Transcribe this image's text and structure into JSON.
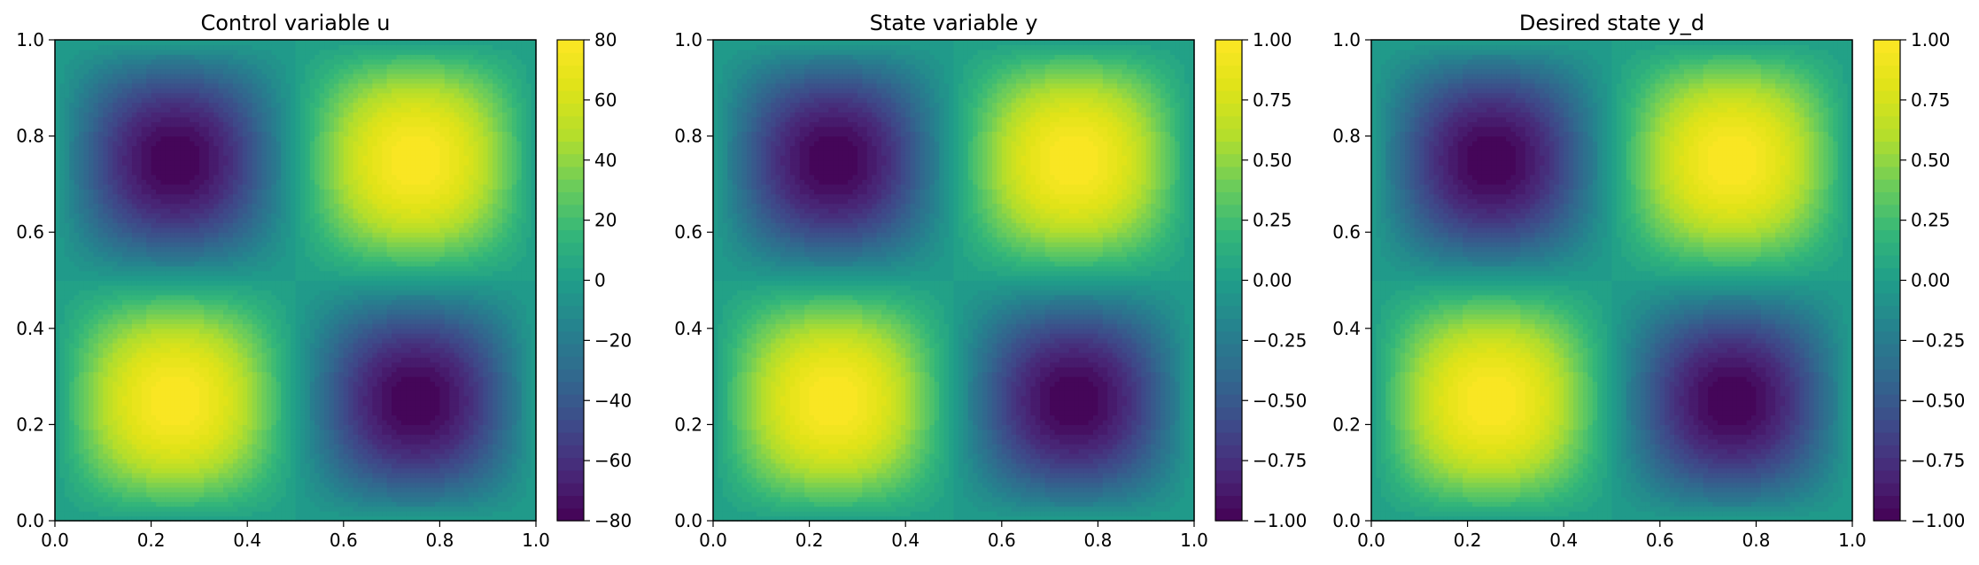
{
  "chart_data": [
    {
      "type": "heatmap",
      "title": "Control variable u",
      "xlabel": "",
      "ylabel": "",
      "xlim": [
        0.0,
        1.0
      ],
      "ylim": [
        0.0,
        1.0
      ],
      "x_ticks": [
        "0.0",
        "0.2",
        "0.4",
        "0.6",
        "0.8",
        "1.0"
      ],
      "y_ticks": [
        "0.0",
        "0.2",
        "0.4",
        "0.6",
        "0.8",
        "1.0"
      ],
      "function": "80 * sin(2*pi*x) * sin(2*pi*y)",
      "amplitude": 80,
      "extrema": [
        {
          "x": 0.25,
          "y": 0.25,
          "value": 80
        },
        {
          "x": 0.75,
          "y": 0.75,
          "value": 80
        },
        {
          "x": 0.75,
          "y": 0.25,
          "value": -80
        },
        {
          "x": 0.25,
          "y": 0.75,
          "value": -80
        }
      ],
      "colorbar": {
        "range": [
          -80,
          80
        ],
        "ticks": [
          "80",
          "60",
          "40",
          "20",
          "0",
          "−20",
          "−40",
          "−60",
          "−80"
        ]
      },
      "colormap": "viridis",
      "grid": false
    },
    {
      "type": "heatmap",
      "title": "State variable y",
      "xlabel": "",
      "ylabel": "",
      "xlim": [
        0.0,
        1.0
      ],
      "ylim": [
        0.0,
        1.0
      ],
      "x_ticks": [
        "0.0",
        "0.2",
        "0.4",
        "0.6",
        "0.8",
        "1.0"
      ],
      "y_ticks": [
        "0.0",
        "0.2",
        "0.4",
        "0.6",
        "0.8",
        "1.0"
      ],
      "function": "sin(2*pi*x) * sin(2*pi*y)",
      "amplitude": 1,
      "extrema": [
        {
          "x": 0.25,
          "y": 0.25,
          "value": 1.0
        },
        {
          "x": 0.75,
          "y": 0.75,
          "value": 1.0
        },
        {
          "x": 0.75,
          "y": 0.25,
          "value": -1.0
        },
        {
          "x": 0.25,
          "y": 0.75,
          "value": -1.0
        }
      ],
      "colorbar": {
        "range": [
          -1.0,
          1.0
        ],
        "ticks": [
          "1.00",
          "0.75",
          "0.50",
          "0.25",
          "0.00",
          "−0.25",
          "−0.50",
          "−0.75",
          "−1.00"
        ]
      },
      "colormap": "viridis",
      "grid": false
    },
    {
      "type": "heatmap",
      "title": "Desired state y_d",
      "xlabel": "",
      "ylabel": "",
      "xlim": [
        0.0,
        1.0
      ],
      "ylim": [
        0.0,
        1.0
      ],
      "x_ticks": [
        "0.0",
        "0.2",
        "0.4",
        "0.6",
        "0.8",
        "1.0"
      ],
      "y_ticks": [
        "0.0",
        "0.2",
        "0.4",
        "0.6",
        "0.8",
        "1.0"
      ],
      "function": "sin(2*pi*x) * sin(2*pi*y)",
      "amplitude": 1,
      "extrema": [
        {
          "x": 0.25,
          "y": 0.25,
          "value": 1.0
        },
        {
          "x": 0.75,
          "y": 0.75,
          "value": 1.0
        },
        {
          "x": 0.75,
          "y": 0.25,
          "value": -1.0
        },
        {
          "x": 0.25,
          "y": 0.75,
          "value": -1.0
        }
      ],
      "colorbar": {
        "range": [
          -1.0,
          1.0
        ],
        "ticks": [
          "1.00",
          "0.75",
          "0.50",
          "0.25",
          "0.00",
          "−0.25",
          "−0.50",
          "−0.75",
          "−1.00"
        ]
      },
      "colormap": "viridis",
      "grid": false
    }
  ]
}
